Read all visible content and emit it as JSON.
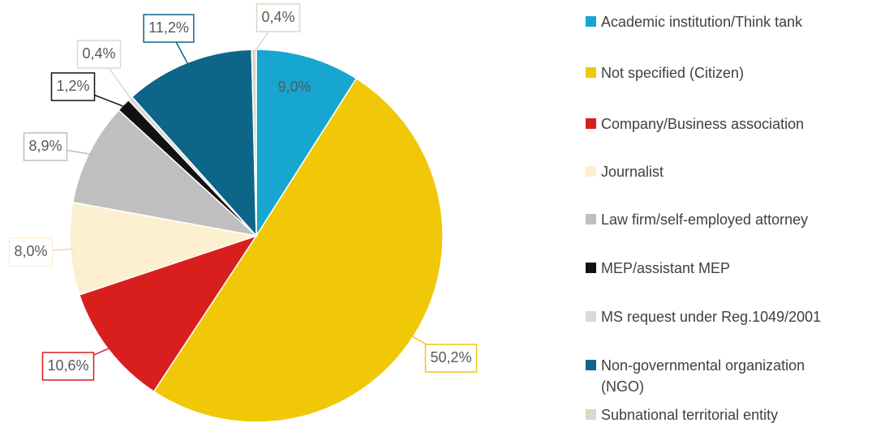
{
  "chart_data": {
    "type": "pie",
    "categories": [
      "Academic institution/Think tank",
      "Not specified (Citizen)",
      "Company/Business association",
      "Journalist",
      "Law firm/self-employed attorney",
      "MEP/assistant MEP",
      "MS request under Reg.1049/2001",
      "Non-governmental organization (NGO)",
      "Subnational territorial entity"
    ],
    "values": [
      9.0,
      50.2,
      10.6,
      8.0,
      8.9,
      1.2,
      0.4,
      11.2,
      0.4
    ],
    "value_labels": [
      "9,0%",
      "50,2%",
      "10,6%",
      "8,0%",
      "8,9%",
      "1,2%",
      "0,4%",
      "11,2%",
      "0,4%"
    ],
    "colors": [
      "#16a6cf",
      "#f0c808",
      "#d81f1e",
      "#fdf0d0",
      "#bfbfbf",
      "#111111",
      "#d9d9d9",
      "#0d6588",
      "#ddd7c6"
    ],
    "legend": "right"
  }
}
